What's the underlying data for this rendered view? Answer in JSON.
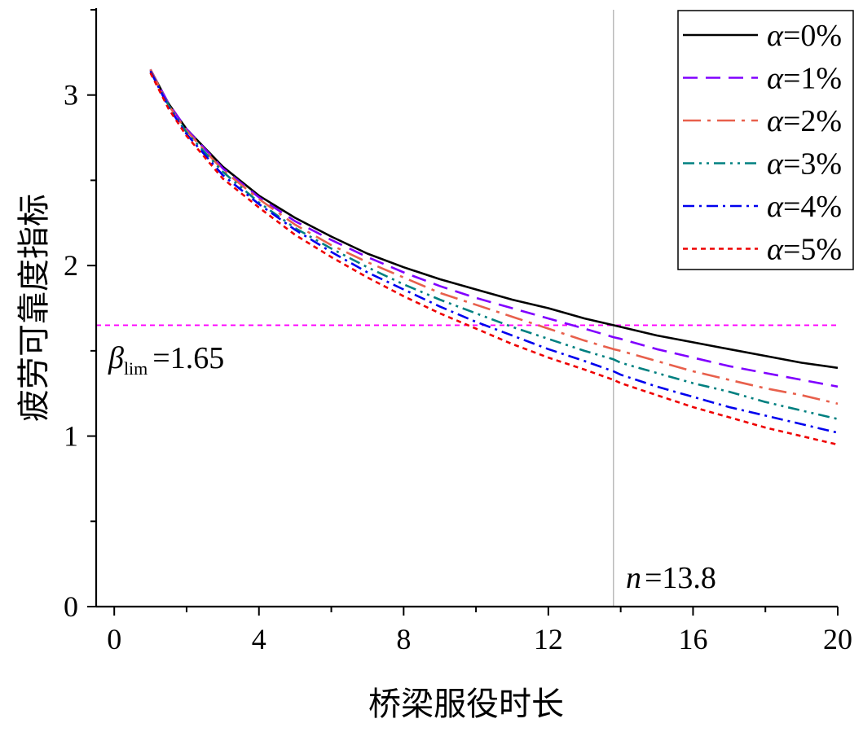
{
  "chart_data": {
    "type": "line",
    "title": "",
    "xlabel": "桥梁服役时长",
    "ylabel": "疲劳可靠度指标",
    "xlim": [
      -0.5,
      20
    ],
    "ylim": [
      0,
      3.5
    ],
    "x_ticks": [
      0,
      4,
      8,
      12,
      16,
      20
    ],
    "x_tick_labels": [
      "0",
      "4",
      "8",
      "12",
      "16",
      "20"
    ],
    "y_ticks": [
      0,
      1,
      2,
      3
    ],
    "y_tick_labels": [
      "0",
      "1",
      "2",
      "3"
    ],
    "grid": false,
    "legend_position": "top-right",
    "x": [
      1,
      1.5,
      2,
      3,
      4,
      5,
      6,
      7,
      8,
      9,
      10,
      11,
      12,
      13,
      13.8,
      14,
      15,
      16,
      17,
      18,
      19,
      20
    ],
    "series": [
      {
        "name": "α=0%",
        "greek": "α",
        "suffix": "=0%",
        "color": "#000000",
        "dash": "",
        "values": [
          3.15,
          2.95,
          2.8,
          2.58,
          2.41,
          2.28,
          2.17,
          2.07,
          1.99,
          1.92,
          1.86,
          1.8,
          1.75,
          1.69,
          1.65,
          1.64,
          1.59,
          1.55,
          1.51,
          1.47,
          1.43,
          1.4
        ]
      },
      {
        "name": "α=1%",
        "greek": "α",
        "suffix": "=1%",
        "color": "#8000ff",
        "dash": "18,10",
        "values": [
          3.15,
          2.95,
          2.8,
          2.57,
          2.4,
          2.26,
          2.15,
          2.05,
          1.96,
          1.88,
          1.81,
          1.75,
          1.69,
          1.63,
          1.58,
          1.57,
          1.51,
          1.46,
          1.41,
          1.37,
          1.33,
          1.29
        ]
      },
      {
        "name": "α=2%",
        "greek": "α",
        "suffix": "=2%",
        "color": "#e8604c",
        "dash": "22,8,4,8",
        "values": [
          3.15,
          2.94,
          2.79,
          2.56,
          2.39,
          2.24,
          2.12,
          2.02,
          1.93,
          1.84,
          1.77,
          1.7,
          1.63,
          1.56,
          1.51,
          1.5,
          1.44,
          1.38,
          1.33,
          1.28,
          1.24,
          1.19
        ]
      },
      {
        "name": "α=3%",
        "greek": "α",
        "suffix": "=3%",
        "color": "#008080",
        "dash": "14,6,3,6,3,6",
        "values": [
          3.14,
          2.94,
          2.78,
          2.55,
          2.37,
          2.22,
          2.1,
          1.99,
          1.89,
          1.8,
          1.72,
          1.64,
          1.57,
          1.5,
          1.45,
          1.43,
          1.37,
          1.31,
          1.26,
          1.2,
          1.15,
          1.1
        ]
      },
      {
        "name": "α=4%",
        "greek": "α",
        "suffix": "=4%",
        "color": "#0000ee",
        "dash": "14,6,3,6",
        "values": [
          3.14,
          2.93,
          2.77,
          2.53,
          2.36,
          2.21,
          2.08,
          1.96,
          1.86,
          1.76,
          1.67,
          1.59,
          1.51,
          1.44,
          1.38,
          1.36,
          1.29,
          1.23,
          1.17,
          1.12,
          1.07,
          1.02
        ]
      },
      {
        "name": "α=5%",
        "greek": "α",
        "suffix": "=5%",
        "color": "#ee0000",
        "dash": "6,5",
        "values": [
          3.13,
          2.92,
          2.76,
          2.51,
          2.34,
          2.18,
          2.05,
          1.93,
          1.82,
          1.72,
          1.63,
          1.54,
          1.46,
          1.39,
          1.33,
          1.31,
          1.24,
          1.17,
          1.11,
          1.05,
          1.0,
          0.95
        ]
      }
    ],
    "reference_lines": [
      {
        "orientation": "horizontal",
        "value": 1.65,
        "color": "#ff00ff",
        "dash": "6,5"
      },
      {
        "orientation": "vertical",
        "value": 13.8,
        "color": "#aaaaaa",
        "dash": ""
      }
    ],
    "annotations": {
      "beta_symbol": "β",
      "beta_subscript": "lim",
      "beta_value": "=1.65",
      "n_symbol": "n",
      "n_value": "=13.8"
    }
  }
}
